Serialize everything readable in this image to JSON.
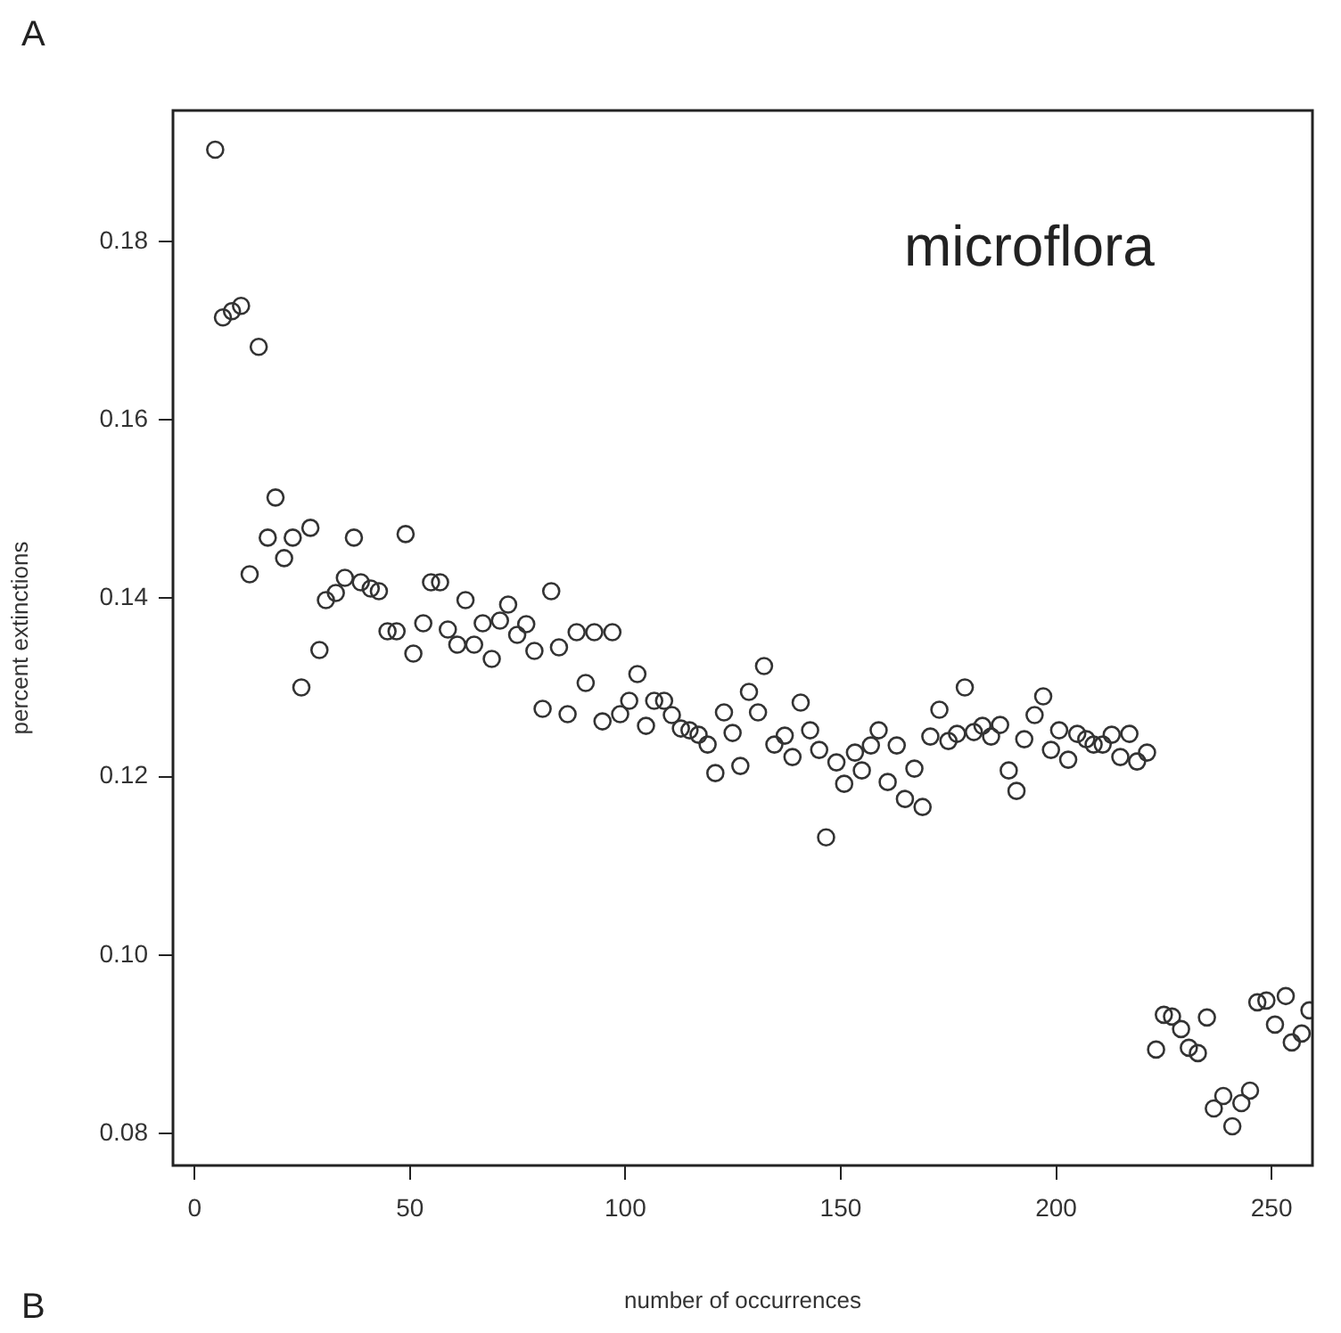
{
  "chart_data": {
    "type": "scatter",
    "xlabel": "number of occurrences",
    "ylabel": "percent extinctions",
    "annotations": [
      "microflora",
      "A",
      "B"
    ],
    "x": [
      4.8,
      6.6,
      8.7,
      10.8,
      14.9,
      18.8,
      17.0,
      12.8,
      20.8,
      22.8,
      26.9,
      24.8,
      29.0,
      37.0,
      30.5,
      32.8,
      34.9,
      38.6,
      40.9,
      42.8,
      49.0,
      44.8,
      46.9,
      50.8,
      53.1,
      54.9,
      57.0,
      58.8,
      61.0,
      62.9,
      64.9,
      66.9,
      69.0,
      70.9,
      72.8,
      74.9,
      77.0,
      78.9,
      80.8,
      82.8,
      84.6,
      88.7,
      92.8,
      97.0,
      90.8,
      86.6,
      102.8,
      94.7,
      98.8,
      100.9,
      104.8,
      106.7,
      109.0,
      110.8,
      112.9,
      114.9,
      117.0,
      119.1,
      120.9,
      126.7,
      122.9,
      124.9,
      128.7,
      130.8,
      132.2,
      140.7,
      134.6,
      137.0,
      138.8,
      142.9,
      145.0,
      146.6,
      149.0,
      150.8,
      153.3,
      154.9,
      157.0,
      158.8,
      160.9,
      163.0,
      164.9,
      167.1,
      169.0,
      170.8,
      172.9,
      175.0,
      177.0,
      178.8,
      180.9,
      182.9,
      184.9,
      187.0,
      189.0,
      190.8,
      192.6,
      195.0,
      197.0,
      198.8,
      200.7,
      202.8,
      204.9,
      207.0,
      208.7,
      210.8,
      212.9,
      214.9,
      217.0,
      218.8,
      221.1,
      223.2,
      225.0,
      226.9,
      229.0,
      230.8,
      232.9,
      235.0,
      236.6,
      238.8,
      240.9,
      243.0,
      245.0,
      246.7,
      248.8,
      250.8,
      253.3,
      254.7,
      257.0,
      258.8
    ],
    "values": [
      0.1903,
      0.1715,
      0.1722,
      0.1728,
      0.1682,
      0.1513,
      0.1468,
      0.1427,
      0.1445,
      0.1468,
      0.1479,
      0.13,
      0.1342,
      0.1468,
      0.1398,
      0.1406,
      0.1423,
      0.1418,
      0.1411,
      0.1408,
      0.1472,
      0.1363,
      0.1363,
      0.1338,
      0.1372,
      0.1418,
      0.1418,
      0.1365,
      0.1348,
      0.1398,
      0.1348,
      0.1372,
      0.1332,
      0.1375,
      0.1393,
      0.1359,
      0.1371,
      0.1341,
      0.1276,
      0.1408,
      0.1345,
      0.1362,
      0.1362,
      0.1362,
      0.1305,
      0.127,
      0.1315,
      0.1262,
      0.127,
      0.1285,
      0.1257,
      0.1285,
      0.1285,
      0.1269,
      0.1254,
      0.1252,
      0.1247,
      0.1236,
      0.1204,
      0.1212,
      0.1272,
      0.1249,
      0.1295,
      0.1272,
      0.1324,
      0.1283,
      0.1236,
      0.1246,
      0.1222,
      0.1252,
      0.123,
      0.1132,
      0.1216,
      0.1192,
      0.1227,
      0.1207,
      0.1235,
      0.1252,
      0.1194,
      0.1235,
      0.1175,
      0.1209,
      0.1166,
      0.1245,
      0.1275,
      0.124,
      0.1248,
      0.13,
      0.125,
      0.1257,
      0.1245,
      0.1258,
      0.1207,
      0.1184,
      0.1242,
      0.1269,
      0.129,
      0.123,
      0.1252,
      0.1219,
      0.1248,
      0.1242,
      0.1236,
      0.1236,
      0.1247,
      0.1222,
      0.1248,
      0.1217,
      0.1227,
      0.0894,
      0.0933,
      0.0931,
      0.0917,
      0.0896,
      0.089,
      0.093,
      0.0828,
      0.0842,
      0.0808,
      0.0834,
      0.0848,
      0.0947,
      0.0949,
      0.0922,
      0.0954,
      0.0902,
      0.0912,
      0.0938
    ],
    "color": "#333333",
    "marker": "circle",
    "grid": false,
    "legend": false,
    "xlim": [
      -5.0,
      259.5
    ],
    "xticks": [
      0,
      50,
      100,
      150,
      200,
      250
    ],
    "ylim": [
      0.0764,
      0.1947
    ],
    "yticks": [
      0.08,
      {
        "value": 0.1,
        "label": "0.10"
      },
      0.12,
      0.14,
      0.16,
      0.18
    ]
  }
}
